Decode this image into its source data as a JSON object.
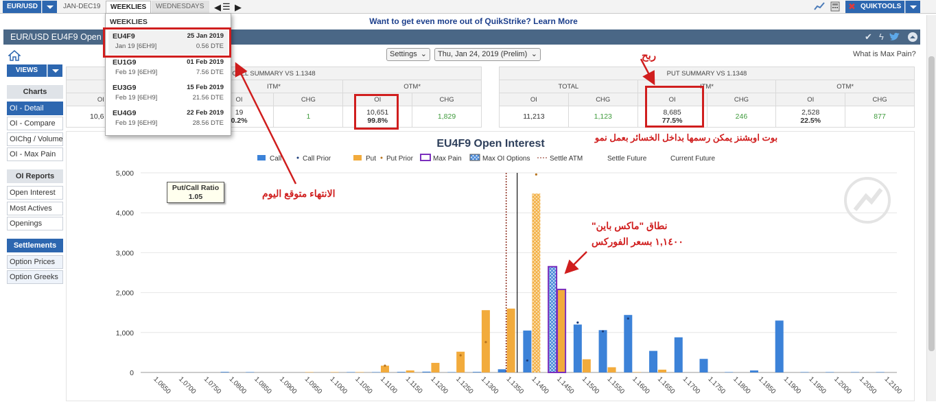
{
  "topbar": {
    "currency": "EUR/USD",
    "tabs": [
      "JAN-DEC19",
      "WEEKLIES",
      "WEDNESDAYS"
    ],
    "quiktools": "QUIKTOOLS"
  },
  "promo": "Want to get even more out of QuikStrike? Learn More",
  "title": "EUR/USD EU4F9 Open",
  "views": "VIEWS",
  "settings": {
    "settings_label": "Settings",
    "date_label": "Thu, Jan 24, 2019 (Prelim)",
    "max_pain_link": "What is Max Pain?"
  },
  "sidebar": {
    "charts_header": "Charts",
    "charts": [
      "OI - Detail",
      "OI - Compare",
      "OIChg / Volume",
      "OI - Max Pain"
    ],
    "reports_header": "OI Reports",
    "reports": [
      "Open Interest",
      "Most Actives",
      "Openings"
    ],
    "settlements_header": "Settlements",
    "settlements": [
      "Option Prices",
      "Option Greeks"
    ]
  },
  "weeklies": {
    "header": "WEEKLIES",
    "items": [
      {
        "code": "EU4F9",
        "date": "25 Jan 2019",
        "sub": "Jan 19  [6EH9]",
        "dte": "0.56 DTE"
      },
      {
        "code": "EU1G9",
        "date": "01 Feb 2019",
        "sub": "Feb 19  [6EH9]",
        "dte": "7.56 DTE"
      },
      {
        "code": "EU3G9",
        "date": "15 Feb 2019",
        "sub": "Feb 19  [6EH9]",
        "dte": "21.56 DTE"
      },
      {
        "code": "EU4G9",
        "date": "22 Feb 2019",
        "sub": "Feb 19  [6EH9]",
        "dte": "28.56 DTE"
      }
    ]
  },
  "call_summary": {
    "title": "CALL SUMMARY VS 1.1348",
    "groups": [
      "ITM*",
      "OTM*"
    ],
    "cols": [
      "OI",
      "CHG",
      "OI",
      "CHG"
    ],
    "total_oi": "10,6",
    "itm_oi": "19",
    "itm_pct": "0.2%",
    "itm_chg": "1",
    "otm_oi": "10,651",
    "otm_pct": "99.8%",
    "otm_chg": "1,829"
  },
  "put_summary": {
    "title": "PUT SUMMARY VS 1.1348",
    "groups": [
      "TOTAL",
      "ITM*",
      "OTM*"
    ],
    "cols": [
      "OI",
      "CHG",
      "OI",
      "CHG",
      "OI",
      "CHG"
    ],
    "total_oi": "11,213",
    "total_chg": "1,123",
    "itm_oi": "8,685",
    "itm_pct": "77.5%",
    "itm_chg": "246",
    "otm_oi": "2,528",
    "otm_pct": "22.5%",
    "otm_chg": "877"
  },
  "annotations": {
    "profit": "ربح",
    "put_note": "بوت اوبشنز يمكن رسمها بداخل الخسائر بعمل نمو",
    "expiry": "الانتهاء متوقع اليوم",
    "maxpain_1": "نطاق \"ماكس باين\"",
    "maxpain_2": "١,١٤٠٠ بسعر الفوركس"
  },
  "pcr": {
    "label": "Put/Call Ratio",
    "value": "1.05"
  },
  "colors": {
    "call": "#3c82d8",
    "put": "#f2ab3c",
    "max_pain": "#7b2fbd",
    "annotation": "#d01e1e"
  },
  "chart_data": {
    "type": "bar",
    "title": "EU4F9 Open Interest",
    "legend": [
      "Call",
      "Call Prior",
      "Put",
      "Put Prior",
      "Max Pain",
      "Max OI Options",
      "Settle ATM",
      "Settle Future",
      "Current Future"
    ],
    "categories": [
      "1.0650",
      "1.0700",
      "1.0750",
      "1.0800",
      "1.0850",
      "1.0900",
      "1.0950",
      "1.1000",
      "1.1050",
      "1.1100",
      "1.1150",
      "1.1200",
      "1.1250",
      "1.1300",
      "1.1350",
      "1.1400",
      "1.1450",
      "1.1500",
      "1.1550",
      "1.1600",
      "1.1650",
      "1.1700",
      "1.1750",
      "1.1800",
      "1.1850",
      "1.1900",
      "1.1950",
      "1.2000",
      "1.2050",
      "1.2100"
    ],
    "series": [
      {
        "name": "Call",
        "values": [
          0,
          0,
          0,
          15,
          10,
          0,
          0,
          0,
          10,
          10,
          15,
          20,
          10,
          15,
          80,
          1050,
          2650,
          1200,
          1060,
          1440,
          540,
          880,
          340,
          10,
          50,
          1300,
          10,
          10,
          10,
          10
        ]
      },
      {
        "name": "Put",
        "values": [
          0,
          0,
          0,
          0,
          0,
          0,
          10,
          10,
          10,
          170,
          50,
          240,
          520,
          1560,
          1600,
          4480,
          2080,
          330,
          130,
          10,
          70,
          0,
          0,
          0,
          0,
          0,
          0,
          0,
          0,
          0
        ]
      },
      {
        "name": "Call Prior",
        "values": [
          0,
          0,
          0,
          0,
          0,
          0,
          0,
          0,
          0,
          0,
          0,
          0,
          0,
          0,
          0,
          300,
          0,
          1250,
          1030,
          1350,
          0,
          0,
          0,
          0,
          0,
          0,
          0,
          0,
          0,
          0
        ]
      },
      {
        "name": "Put Prior",
        "values": [
          0,
          0,
          0,
          0,
          0,
          0,
          0,
          0,
          0,
          170,
          0,
          0,
          430,
          760,
          0,
          4960,
          0,
          0,
          0,
          0,
          0,
          0,
          0,
          0,
          0,
          0,
          0,
          0,
          0,
          0
        ]
      }
    ],
    "max_pain_strike": "1.1450",
    "max_oi_strike": "1.1400",
    "settle_atm": "1.1350",
    "ylim": [
      0,
      5000
    ],
    "yticks": [
      "0",
      "1,000",
      "2,000",
      "3,000",
      "4,000",
      "5,000"
    ]
  }
}
